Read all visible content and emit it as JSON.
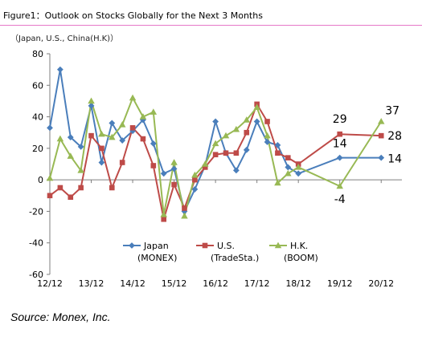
{
  "chart_data": {
    "type": "line",
    "title": "Figure1：Outlook on Stocks Globally for the Next 3 Months",
    "subtitle": "（Japan, U.S., China(H.K)）",
    "ylim": [
      -60,
      80
    ],
    "yticks": [
      -60,
      -40,
      -20,
      0,
      20,
      40,
      60,
      80
    ],
    "xlim": [
      0,
      8.5
    ],
    "xticks": [
      {
        "label": "12/12",
        "x": 0
      },
      {
        "label": "13/12",
        "x": 1
      },
      {
        "label": "14/12",
        "x": 2
      },
      {
        "label": "15/12",
        "x": 3
      },
      {
        "label": "16/12",
        "x": 4
      },
      {
        "label": "17/12",
        "x": 5
      },
      {
        "label": "18/12",
        "x": 6
      },
      {
        "label": "19/12",
        "x": 7
      },
      {
        "label": "20/12",
        "x": 8
      }
    ],
    "grid": false,
    "legend": "bottom-center",
    "series": [
      {
        "name": "Japan",
        "name2": "(MONEX)",
        "color": "#4a7ebb",
        "marker": "diamond",
        "x": [
          0,
          0.25,
          0.5,
          0.75,
          1,
          1.25,
          1.5,
          1.75,
          2,
          2.25,
          2.5,
          2.75,
          3,
          3.25,
          3.5,
          3.75,
          4,
          4.25,
          4.5,
          4.75,
          5,
          5.25,
          5.5,
          5.75,
          6,
          7,
          8
        ],
        "y": [
          33,
          70,
          27,
          21,
          47,
          11,
          36,
          25,
          31,
          38,
          23,
          4,
          7,
          -20,
          -6,
          9,
          37,
          17,
          6,
          19,
          37,
          24,
          22,
          8,
          4,
          14,
          14
        ]
      },
      {
        "name": "U.S.",
        "name2": "(TradeSta.)",
        "color": "#be4b48",
        "marker": "square",
        "x": [
          0,
          0.25,
          0.5,
          0.75,
          1,
          1.25,
          1.5,
          1.75,
          2,
          2.25,
          2.5,
          2.75,
          3,
          3.25,
          3.5,
          3.75,
          4,
          4.25,
          4.5,
          4.75,
          5,
          5.25,
          5.5,
          5.75,
          6,
          7,
          8
        ],
        "y": [
          -10,
          -5,
          -11,
          -5,
          28,
          20,
          -5,
          11,
          33,
          26,
          9,
          -25,
          -3,
          -18,
          0,
          8,
          16,
          17,
          17,
          30,
          48,
          37,
          17,
          14,
          10,
          29,
          28
        ]
      },
      {
        "name": "H.K.",
        "name2": "(BOOM)",
        "color": "#98b954",
        "marker": "triangle",
        "x": [
          0,
          0.25,
          0.5,
          0.75,
          1,
          1.25,
          1.5,
          1.75,
          2,
          2.25,
          2.5,
          2.75,
          3,
          3.25,
          3.5,
          3.75,
          4,
          4.25,
          4.5,
          4.75,
          5,
          5.25,
          5.5,
          5.75,
          6,
          7,
          8
        ],
        "y": [
          1,
          26,
          15,
          6,
          50,
          29,
          27,
          35,
          52,
          40,
          43,
          -22,
          11,
          -23,
          3,
          10,
          23,
          28,
          32,
          38,
          46,
          28,
          -2,
          4,
          8,
          -4,
          37
        ]
      }
    ],
    "annotations": [
      {
        "text": "29",
        "series": "U.S.",
        "x": 7,
        "y": 29
      },
      {
        "text": "14",
        "series": "Japan",
        "x": 7,
        "y": 14
      },
      {
        "text": "-4",
        "series": "H.K.",
        "x": 7,
        "y": -4
      },
      {
        "text": "37",
        "series": "H.K.",
        "x": 8,
        "y": 37
      },
      {
        "text": "28",
        "series": "U.S.",
        "x": 8,
        "y": 28
      },
      {
        "text": "14",
        "series": "Japan",
        "x": 8,
        "y": 14
      }
    ]
  },
  "source": "Source: Monex, Inc."
}
